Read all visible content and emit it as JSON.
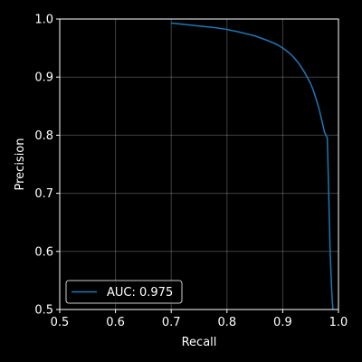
{
  "chart_data": {
    "type": "line",
    "title": "",
    "xlabel": "Recall",
    "ylabel": "Precision",
    "xlim": [
      0.5,
      1.0
    ],
    "ylim": [
      0.5,
      1.0
    ],
    "xticks": [
      0.5,
      0.6,
      0.7,
      0.8,
      0.9,
      1.0
    ],
    "yticks": [
      0.5,
      0.6,
      0.7,
      0.8,
      0.9,
      1.0
    ],
    "xtick_labels": [
      "0.5",
      "0.6",
      "0.7",
      "0.8",
      "0.9",
      "1.0"
    ],
    "ytick_labels": [
      "0.5",
      "0.6",
      "0.7",
      "0.8",
      "0.9",
      "1.0"
    ],
    "grid": true,
    "legend_position": "lower-left",
    "series": [
      {
        "name": "AUC: 0.975",
        "color": "#1f77b4",
        "x": [
          0.7,
          0.72,
          0.75,
          0.78,
          0.8,
          0.82,
          0.85,
          0.87,
          0.89,
          0.9,
          0.91,
          0.92,
          0.93,
          0.94,
          0.95,
          0.955,
          0.96,
          0.965,
          0.97,
          0.975,
          0.98,
          0.982,
          0.985,
          0.988,
          0.99
        ],
        "y": [
          0.993,
          0.991,
          0.988,
          0.985,
          0.982,
          0.978,
          0.971,
          0.964,
          0.956,
          0.95,
          0.943,
          0.934,
          0.922,
          0.907,
          0.889,
          0.877,
          0.862,
          0.846,
          0.826,
          0.805,
          0.795,
          0.72,
          0.6,
          0.53,
          0.5
        ]
      }
    ]
  }
}
